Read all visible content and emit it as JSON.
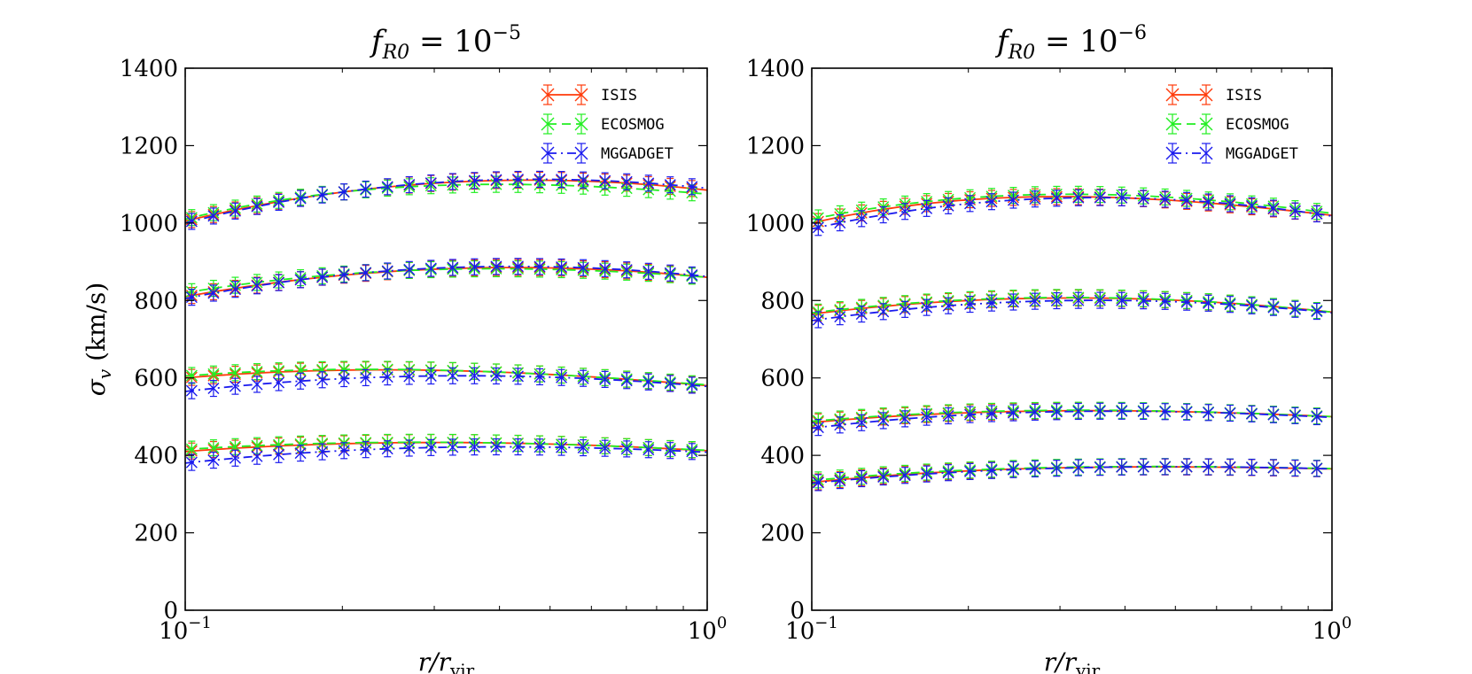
{
  "chart_data": [
    {
      "type": "line",
      "title": "f_R0 = 10^-5",
      "title_main": "f",
      "title_sub": "R0",
      "title_eq": " = 10",
      "title_sup": "−5",
      "xlabel": "r/r_vir",
      "xlabel_main": "r/r",
      "xlabel_sub": "vir",
      "ylabel": "σ_v (km/s)",
      "ylabel_sym": "σ",
      "ylabel_sub": "v",
      "ylabel_unit": "(km/s)",
      "xscale": "log",
      "xlim": [
        0.1,
        1.0
      ],
      "ylim": [
        0,
        1400
      ],
      "yticks": [
        0,
        200,
        400,
        600,
        800,
        1000,
        1200,
        1400
      ],
      "ytick_labels": [
        "0",
        "200",
        "400",
        "600",
        "800",
        "1000",
        "1200",
        "1400"
      ],
      "xticks": [
        0.1,
        1.0
      ],
      "xtick_labels": [
        {
          "base": "10",
          "exp": "−1"
        },
        {
          "base": "10",
          "exp": "0"
        }
      ],
      "legend_position": "top-right",
      "series": [
        {
          "name": "ISIS",
          "color": "#ff3a0a",
          "style": "solid",
          "groups": [
            {
              "x": [
                0.1,
                0.2,
                0.4,
                1.0
              ],
              "y": [
                1005,
                1080,
                1110,
                1085
              ]
            },
            {
              "x": [
                0.1,
                0.2,
                0.4,
                1.0
              ],
              "y": [
                810,
                865,
                885,
                860
              ]
            },
            {
              "x": [
                0.1,
                0.2,
                0.4,
                1.0
              ],
              "y": [
                600,
                620,
                615,
                580
              ]
            },
            {
              "x": [
                0.1,
                0.2,
                0.4,
                1.0
              ],
              "y": [
                410,
                430,
                432,
                412
              ]
            }
          ]
        },
        {
          "name": "ECOSMOG",
          "color": "#22ee22",
          "style": "dashed",
          "groups": [
            {
              "x": [
                0.1,
                0.2,
                0.4,
                1.0
              ],
              "y": [
                1010,
                1080,
                1100,
                1075
              ]
            },
            {
              "x": [
                0.1,
                0.2,
                0.4,
                1.0
              ],
              "y": [
                820,
                868,
                882,
                860
              ]
            },
            {
              "x": [
                0.1,
                0.2,
                0.4,
                1.0
              ],
              "y": [
                605,
                622,
                615,
                582
              ]
            },
            {
              "x": [
                0.1,
                0.2,
                0.4,
                1.0
              ],
              "y": [
                415,
                432,
                432,
                413
              ]
            }
          ]
        },
        {
          "name": "MGGADGET",
          "color": "#1a1aee",
          "style": "dashdot",
          "groups": [
            {
              "x": [
                0.1,
                0.2,
                0.4,
                1.0
              ],
              "y": [
                1000,
                1080,
                1112,
                1090
              ]
            },
            {
              "x": [
                0.1,
                0.2,
                0.4,
                1.0
              ],
              "y": [
                805,
                866,
                888,
                862
              ]
            },
            {
              "x": [
                0.1,
                0.2,
                0.4,
                1.0
              ],
              "y": [
                565,
                598,
                605,
                578
              ]
            },
            {
              "x": [
                0.1,
                0.2,
                0.4,
                1.0
              ],
              "y": [
                380,
                412,
                422,
                408
              ]
            }
          ]
        }
      ]
    },
    {
      "type": "line",
      "title": "f_R0 = 10^-6",
      "title_main": "f",
      "title_sub": "R0",
      "title_eq": " = 10",
      "title_sup": "−6",
      "xlabel": "r/r_vir",
      "xlabel_main": "r/r",
      "xlabel_sub": "vir",
      "xscale": "log",
      "xlim": [
        0.1,
        1.0
      ],
      "ylim": [
        0,
        1400
      ],
      "yticks": [
        0,
        200,
        400,
        600,
        800,
        1000,
        1200,
        1400
      ],
      "ytick_labels": [
        "0",
        "200",
        "400",
        "600",
        "800",
        "1000",
        "1200",
        "1400"
      ],
      "xticks": [
        0.1,
        1.0
      ],
      "xtick_labels": [
        {
          "base": "10",
          "exp": "−1"
        },
        {
          "base": "10",
          "exp": "0"
        }
      ],
      "legend_position": "top-right",
      "series": [
        {
          "name": "ISIS",
          "color": "#ff3a0a",
          "style": "solid",
          "groups": [
            {
              "x": [
                0.1,
                0.2,
                0.4,
                1.0
              ],
              "y": [
                1000,
                1060,
                1065,
                1020
              ]
            },
            {
              "x": [
                0.1,
                0.2,
                0.4,
                1.0
              ],
              "y": [
                765,
                800,
                805,
                770
              ]
            },
            {
              "x": [
                0.1,
                0.2,
                0.4,
                1.0
              ],
              "y": [
                485,
                510,
                515,
                500
              ]
            },
            {
              "x": [
                0.1,
                0.2,
                0.4,
                1.0
              ],
              "y": [
                330,
                360,
                370,
                365
              ]
            }
          ]
        },
        {
          "name": "ECOSMOG",
          "color": "#22ee22",
          "style": "dashed",
          "groups": [
            {
              "x": [
                0.1,
                0.2,
                0.4,
                1.0
              ],
              "y": [
                1010,
                1065,
                1072,
                1025
              ]
            },
            {
              "x": [
                0.1,
                0.2,
                0.4,
                1.0
              ],
              "y": [
                768,
                802,
                806,
                770
              ]
            },
            {
              "x": [
                0.1,
                0.2,
                0.4,
                1.0
              ],
              "y": [
                488,
                512,
                516,
                500
              ]
            },
            {
              "x": [
                0.1,
                0.2,
                0.4,
                1.0
              ],
              "y": [
                335,
                362,
                371,
                366
              ]
            }
          ]
        },
        {
          "name": "MGGADGET",
          "color": "#1a1aee",
          "style": "dashdot",
          "groups": [
            {
              "x": [
                0.1,
                0.2,
                0.4,
                1.0
              ],
              "y": [
                985,
                1050,
                1065,
                1018
              ]
            },
            {
              "x": [
                0.1,
                0.2,
                0.4,
                1.0
              ],
              "y": [
                748,
                790,
                800,
                768
              ]
            },
            {
              "x": [
                0.1,
                0.2,
                0.4,
                1.0
              ],
              "y": [
                470,
                505,
                514,
                498
              ]
            },
            {
              "x": [
                0.1,
                0.2,
                0.4,
                1.0
              ],
              "y": [
                328,
                358,
                370,
                365
              ]
            }
          ]
        }
      ]
    }
  ]
}
